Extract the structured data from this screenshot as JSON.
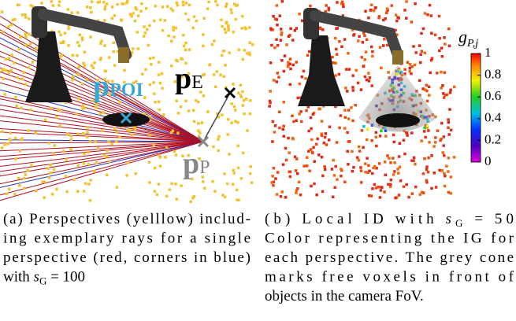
{
  "panels": [
    {
      "labels": [
        {
          "symbol": "p",
          "subscript": "POI"
        },
        {
          "symbol": "p",
          "subscript": "E"
        },
        {
          "symbol": "p",
          "subscript": "P"
        }
      ],
      "caption": [
        "(a) Perspectives (yelllow) includ-",
        "ing exemplary rays for a single",
        "perspective (red, corners in blue)",
        {
          "pre": "with ",
          "var": "s",
          "sub": "G",
          "post": " = 100"
        }
      ]
    },
    {
      "colorbar": {
        "label": {
          "symbol": "g",
          "subscript": "P,j"
        },
        "lim": [
          0,
          1
        ],
        "ticks": [
          0,
          0.2,
          0.4,
          0.6,
          0.8,
          1
        ]
      },
      "caption": [
        {
          "pre": "(b) Local ID with ",
          "var": "s",
          "sub": "G",
          "post": " = 50"
        },
        "Color representing the IG for",
        "each perspective. The grey cone",
        "marks free voxels in front of",
        "objects in the camera FoV."
      ]
    }
  ]
}
